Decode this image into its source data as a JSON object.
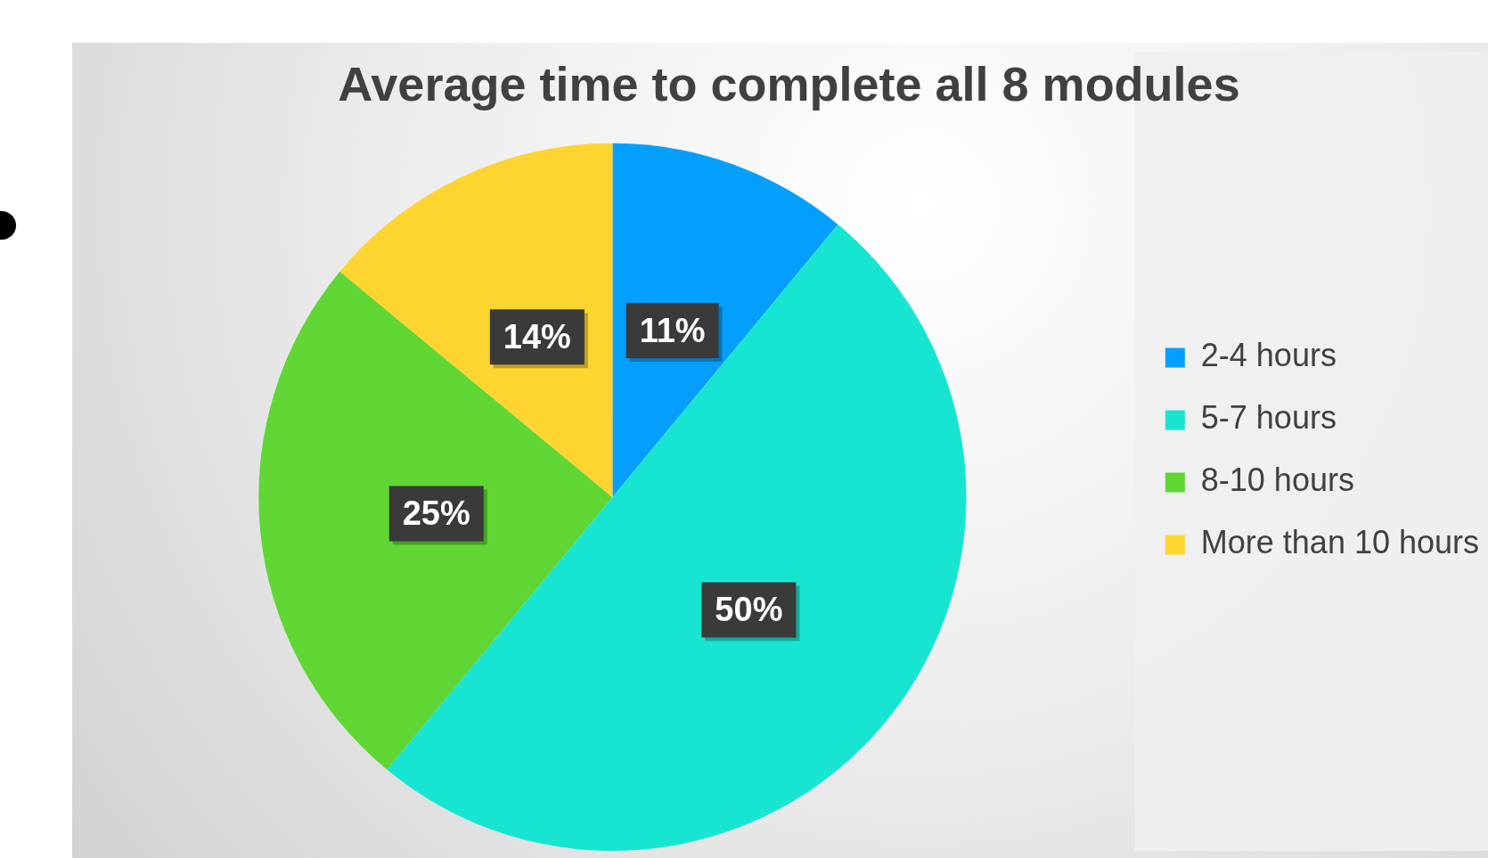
{
  "chart_data": {
    "type": "pie",
    "title": "Average time to complete all 8 modules",
    "categories": [
      "2-4 hours",
      "5-7 hours",
      "8-10 hours",
      "More than 10 hours"
    ],
    "values": [
      11,
      50,
      25,
      14
    ],
    "colors": [
      "#049ffd",
      "#18e5d1",
      "#5fd633",
      "#fed530"
    ],
    "value_labels": [
      "11%",
      "50%",
      "25%",
      "14%"
    ],
    "legend": "right"
  }
}
